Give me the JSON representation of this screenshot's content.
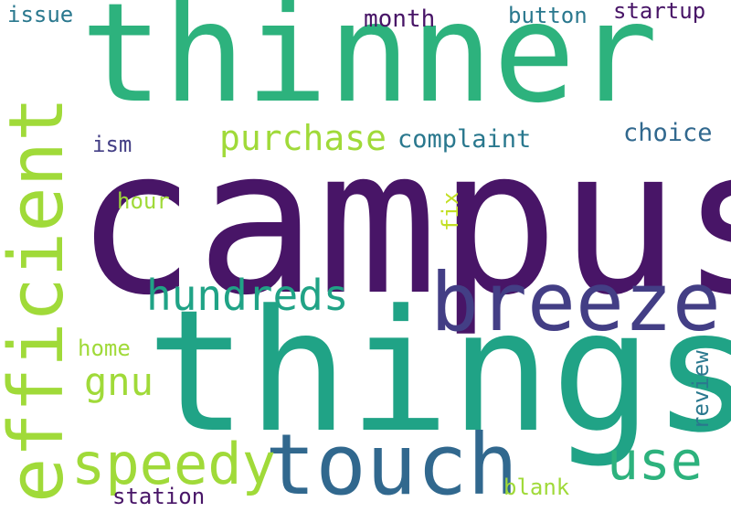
{
  "words": [
    {
      "text": "campus",
      "color": "#481567"
    },
    {
      "text": "thinner",
      "color": "#2db27d"
    },
    {
      "text": "things",
      "color": "#20a386"
    },
    {
      "text": "efficient",
      "color": "#a0da39"
    },
    {
      "text": "breeze",
      "color": "#433e85"
    },
    {
      "text": "touch",
      "color": "#31688e"
    },
    {
      "text": "speedy",
      "color": "#a0da39"
    },
    {
      "text": "hundreds",
      "color": "#20a386"
    },
    {
      "text": "use",
      "color": "#2db27d"
    },
    {
      "text": "purchase",
      "color": "#a0da39"
    },
    {
      "text": "complaint",
      "color": "#2a788e"
    },
    {
      "text": "choice",
      "color": "#31688e"
    },
    {
      "text": "gnu",
      "color": "#a0da39"
    },
    {
      "text": "button",
      "color": "#2a788e"
    },
    {
      "text": "startup",
      "color": "#481567"
    },
    {
      "text": "month",
      "color": "#481567"
    },
    {
      "text": "issue",
      "color": "#2a788e"
    },
    {
      "text": "ism",
      "color": "#433e85"
    },
    {
      "text": "hour",
      "color": "#a0da39"
    },
    {
      "text": "fix",
      "color": "#c2df23"
    },
    {
      "text": "home",
      "color": "#a0da39"
    },
    {
      "text": "review",
      "color": "#2a788e"
    },
    {
      "text": "station",
      "color": "#481567"
    },
    {
      "text": "blank",
      "color": "#a0da39"
    }
  ]
}
